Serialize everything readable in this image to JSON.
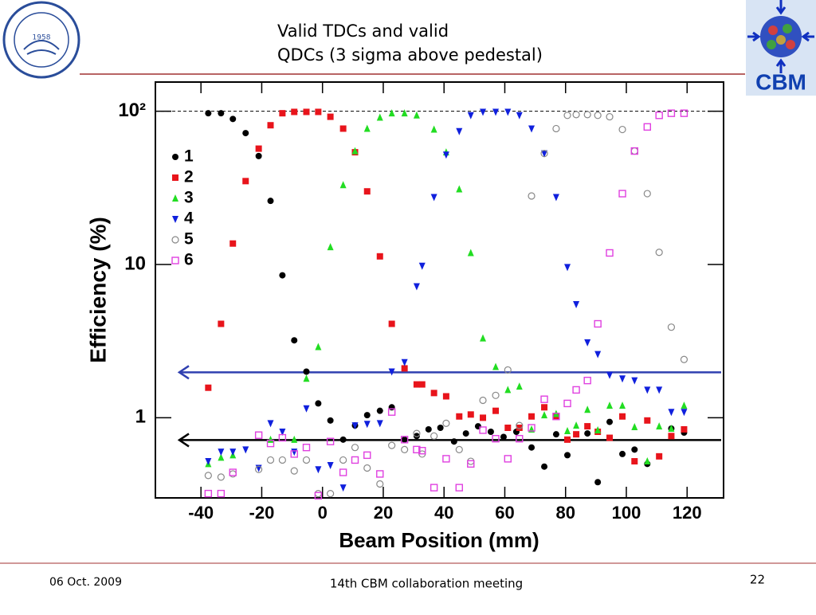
{
  "slide": {
    "title": [
      "Valid TDCs and valid",
      "QDCs (3 sigma above pedestal)"
    ],
    "date": "06 Oct. 2009",
    "meeting": "14th CBM collaboration meeting",
    "page": "22",
    "logo_year": "1958",
    "logo_text": "CBM"
  },
  "chart_data": {
    "type": "scatter",
    "ylabel": "Efficiency (%)",
    "xlabel": "Beam Position (mm)",
    "log_y": true,
    "legend": "upper left",
    "xlim": [
      -55,
      132
    ],
    "ylim": [
      0.3,
      155
    ],
    "xticks": [
      -40,
      -20,
      0,
      20,
      40,
      60,
      80,
      100,
      120
    ],
    "yticks": [
      1,
      10,
      {
        "value": 100,
        "label": "10²"
      }
    ],
    "reference_lines": [
      {
        "value": 100,
        "color": "#000000",
        "style": "dashed"
      },
      {
        "value": 1.98,
        "color": "#3040b0",
        "style": "arrow"
      },
      {
        "value": 0.715,
        "color": "#000000",
        "style": "arrow"
      }
    ],
    "series": [
      {
        "name": "1",
        "color": "#000000",
        "marker": "circle",
        "x": [
          -37.6,
          -33.4,
          -29.5,
          -25.3,
          -21,
          -17.1,
          -13.2,
          -9.3,
          -5.3,
          -1.4,
          2.6,
          6.8,
          10.7,
          14.7,
          18.9,
          22.8,
          27,
          31,
          34.9,
          38.8,
          43.3,
          47.2,
          51.2,
          55.4,
          59.6,
          63.8,
          68.8,
          73,
          76.9,
          80.6,
          87.2,
          90.6,
          94.5,
          98.7,
          102.7,
          106.9,
          114.8,
          119
        ],
        "values": [
          97,
          97,
          89,
          72,
          51,
          26,
          8.5,
          3.2,
          2.0,
          1.24,
          0.96,
          0.72,
          0.89,
          1.04,
          1.11,
          1.17,
          0.72,
          0.76,
          0.84,
          0.86,
          0.7,
          0.79,
          0.88,
          0.81,
          0.75,
          0.81,
          0.64,
          0.48,
          0.78,
          0.57,
          0.79,
          0.38,
          0.94,
          0.58,
          0.62,
          0.5,
          0.85,
          0.8
        ]
      },
      {
        "name": "2",
        "color": "#e8141b",
        "marker": "square",
        "x": [
          -37.6,
          -33.4,
          -29.5,
          -25.3,
          -21,
          -17.1,
          -13.2,
          -9.3,
          -5.3,
          -1.4,
          2.6,
          6.8,
          10.7,
          14.7,
          18.9,
          22.8,
          27,
          31,
          32.8,
          36.7,
          40.7,
          45,
          48.8,
          52.8,
          57,
          61,
          64.8,
          68.8,
          73,
          76.9,
          80.6,
          83.5,
          87.2,
          90.6,
          94.5,
          98.7,
          102.7,
          106.9,
          110.8,
          114.8,
          119
        ],
        "values": [
          1.57,
          4.1,
          13.7,
          35,
          57,
          81,
          97,
          99,
          99,
          99,
          92,
          77,
          54,
          30,
          11.3,
          4.1,
          2.1,
          1.65,
          1.65,
          1.45,
          1.38,
          1.02,
          1.05,
          1.0,
          1.11,
          0.86,
          0.86,
          1.02,
          1.17,
          1.02,
          0.72,
          0.78,
          0.88,
          0.81,
          0.74,
          1.02,
          0.52,
          0.96,
          0.56,
          0.76,
          0.84
        ]
      },
      {
        "name": "3",
        "color": "#22dd22",
        "marker": "triangle-up",
        "x": [
          -37.6,
          -33.4,
          -29.5,
          -17.1,
          -9.3,
          -5.3,
          -1.4,
          2.6,
          6.8,
          10.7,
          14.7,
          18.9,
          22.8,
          27,
          31,
          36.7,
          40.7,
          45,
          48.8,
          52.8,
          57,
          61,
          64.8,
          68.8,
          73,
          76.9,
          80.6,
          83.5,
          87.2,
          90.6,
          94.5,
          98.7,
          102.7,
          106.9,
          110.8,
          114.8,
          119
        ],
        "values": [
          0.5,
          0.55,
          0.57,
          0.72,
          0.72,
          1.8,
          2.9,
          13,
          33,
          55,
          77,
          91,
          97,
          97,
          94,
          76,
          54,
          31,
          11.9,
          3.3,
          2.15,
          1.52,
          1.6,
          0.84,
          1.04,
          1.06,
          0.82,
          0.89,
          1.13,
          0.83,
          1.2,
          1.2,
          0.87,
          0.52,
          0.88,
          0.85,
          1.2
        ]
      },
      {
        "name": "4",
        "color": "#1020dd",
        "marker": "triangle-down",
        "x": [
          -37.6,
          -33.4,
          -29.5,
          -25.3,
          -21,
          -17.1,
          -13.2,
          -9.3,
          -5.3,
          -1.4,
          2.6,
          6.8,
          10.7,
          14.7,
          18.9,
          22.8,
          27,
          31,
          32.8,
          36.7,
          40.7,
          45,
          48.8,
          52.8,
          57,
          61,
          64.8,
          68.8,
          73,
          76.9,
          80.6,
          83.5,
          87.2,
          90.6,
          94.5,
          98.7,
          102.7,
          106.9,
          110.8,
          114.8,
          119
        ],
        "values": [
          0.52,
          0.6,
          0.6,
          0.62,
          0.47,
          0.92,
          0.81,
          0.6,
          1.15,
          0.46,
          0.49,
          0.35,
          0.89,
          0.91,
          0.92,
          2.0,
          2.3,
          7.2,
          9.8,
          27.5,
          52,
          74,
          94,
          99,
          99,
          99,
          94,
          77,
          53,
          27.5,
          9.6,
          5.5,
          3.1,
          2.6,
          1.9,
          1.8,
          1.75,
          1.52,
          1.52,
          1.09,
          1.09
        ]
      },
      {
        "name": "5",
        "color": "#888888",
        "marker": "circle-open",
        "x": [
          -37.6,
          -33.4,
          -29.5,
          -21,
          -17.1,
          -13.2,
          -9.3,
          -5.3,
          -1.4,
          2.6,
          6.8,
          10.7,
          14.7,
          18.9,
          22.8,
          27,
          31,
          32.8,
          36.7,
          40.7,
          45,
          48.8,
          52.8,
          57,
          61,
          64.8,
          68.8,
          73,
          76.9,
          80.6,
          83.5,
          87.2,
          90.6,
          94.5,
          98.7,
          102.7,
          106.9,
          110.8,
          114.8,
          119
        ],
        "values": [
          0.42,
          0.41,
          0.43,
          0.46,
          0.53,
          0.53,
          0.45,
          0.53,
          0.32,
          0.32,
          0.53,
          0.64,
          0.47,
          0.37,
          0.66,
          0.62,
          0.79,
          0.58,
          0.76,
          0.92,
          0.62,
          0.52,
          1.3,
          1.4,
          2.05,
          0.89,
          28,
          53,
          77,
          94,
          95,
          95,
          94,
          92,
          76,
          55,
          29,
          12,
          3.9,
          2.4
        ]
      },
      {
        "name": "6",
        "color": "#e040e0",
        "marker": "square-open",
        "x": [
          -37.6,
          -33.4,
          -29.5,
          -21,
          -17.1,
          -13.2,
          -9.3,
          -5.3,
          -1.4,
          2.6,
          6.8,
          10.7,
          14.7,
          18.9,
          22.8,
          27,
          31,
          32.8,
          36.7,
          40.7,
          45,
          48.8,
          52.8,
          57,
          61,
          64.8,
          68.8,
          73,
          76.9,
          80.6,
          83.5,
          87.2,
          90.6,
          94.5,
          98.7,
          102.7,
          106.9,
          110.8,
          114.8,
          119
        ],
        "values": [
          0.32,
          0.32,
          0.44,
          0.77,
          0.68,
          0.74,
          0.58,
          0.64,
          0.31,
          0.7,
          0.44,
          0.53,
          0.57,
          0.43,
          1.09,
          0.72,
          0.62,
          0.61,
          0.35,
          0.54,
          0.35,
          0.5,
          0.83,
          0.73,
          0.54,
          0.73,
          0.86,
          1.32,
          1.02,
          1.24,
          1.52,
          1.75,
          4.1,
          11.9,
          29,
          55,
          79,
          94,
          97,
          97
        ]
      }
    ]
  }
}
